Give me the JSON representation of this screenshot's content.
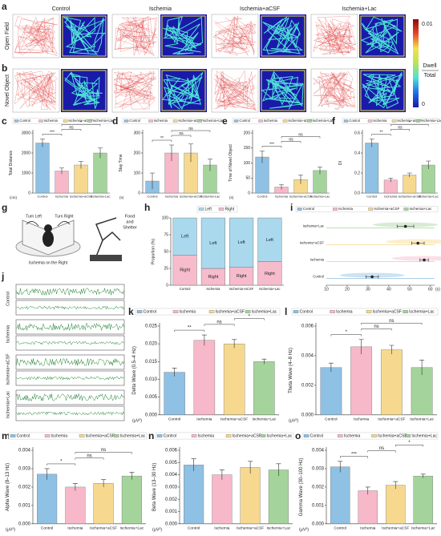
{
  "labels": [
    "a",
    "b",
    "c",
    "d",
    "e",
    "f",
    "g",
    "h",
    "i",
    "j",
    "k",
    "l",
    "m",
    "n",
    "o"
  ],
  "open_field": {
    "columns": [
      "Control",
      "Ischemia",
      "Ischemia+aCSF",
      "Ischemia+Lac"
    ],
    "rows": [
      "Open Field",
      "Novel Object"
    ],
    "colorbar": {
      "max": "0.01",
      "numerator": "Dwell",
      "denominator": "Total",
      "min": "0"
    }
  },
  "maze": {
    "turn_left": "Turn Left",
    "turn_right": "Turn Right",
    "lesion": "Ischemia on the Right",
    "food": [
      "Food",
      "and",
      "Shelter"
    ]
  },
  "eeg": {
    "rows": [
      "Control",
      "Ischemia",
      "Ischemia+aCSF",
      "Ischemia+Lac"
    ]
  },
  "chart_data": [
    {
      "type": "bar",
      "ylabel": "Total Distance",
      "unit": "(cm)",
      "categories": [
        "Control",
        "Ischemia",
        "Ischemia+aCSF",
        "Ischemia+Lac"
      ],
      "colors": [
        "#8ec1e3",
        "#f7b8c9",
        "#f6d98f",
        "#a4d49b"
      ],
      "values": [
        2500,
        1100,
        1400,
        2000
      ],
      "errors": [
        200,
        150,
        180,
        250
      ],
      "ylim": [
        0,
        3000
      ],
      "yticks": [
        0,
        1000,
        2000,
        3000
      ],
      "significance": [
        {
          "bars": [
            0,
            1
          ],
          "label": "***"
        },
        {
          "bars": [
            1,
            2
          ],
          "label": "ns"
        },
        {
          "bars": [
            1,
            3
          ],
          "label": "*"
        }
      ]
    },
    {
      "type": "bar",
      "ylabel": "Stay Time",
      "unit": "(s)",
      "categories": [
        "Control",
        "Ischemia",
        "Ischemia+aCSF",
        "Ischemia+Lac"
      ],
      "colors": [
        "#8ec1e3",
        "#f7b8c9",
        "#f6d98f",
        "#a4d49b"
      ],
      "values": [
        60,
        200,
        200,
        140
      ],
      "errors": [
        40,
        40,
        45,
        30
      ],
      "ylim": [
        0,
        300
      ],
      "yticks": [
        0,
        100,
        200,
        300
      ],
      "significance": [
        {
          "bars": [
            0,
            1
          ],
          "label": "**"
        },
        {
          "bars": [
            1,
            2
          ],
          "label": "ns"
        },
        {
          "bars": [
            1,
            3
          ],
          "label": "ns"
        }
      ]
    },
    {
      "type": "bar",
      "ylabel": "Time of Novel Object",
      "unit": "(s)",
      "categories": [
        "Control",
        "Ischemia",
        "Ischemia+aCSF",
        "Ischemia+Lac"
      ],
      "colors": [
        "#8ec1e3",
        "#f7b8c9",
        "#f6d98f",
        "#a4d49b"
      ],
      "values": [
        120,
        20,
        45,
        75
      ],
      "errors": [
        20,
        8,
        15,
        12
      ],
      "ylim": [
        0,
        200
      ],
      "yticks": [
        0,
        50,
        100,
        150,
        200
      ],
      "significance": [
        {
          "bars": [
            0,
            1
          ],
          "label": "***"
        },
        {
          "bars": [
            1,
            2
          ],
          "label": "ns"
        },
        {
          "bars": [
            1,
            3
          ],
          "label": "ns"
        }
      ]
    },
    {
      "type": "bar",
      "ylabel": "DI",
      "categories": [
        "Control",
        "Ischemia",
        "Ischemia+aCSF",
        "Ischemia+Lac"
      ],
      "colors": [
        "#8ec1e3",
        "#f7b8c9",
        "#f6d98f",
        "#a4d49b"
      ],
      "values": [
        0.5,
        0.13,
        0.18,
        0.28
      ],
      "errors": [
        0.04,
        0.02,
        0.02,
        0.04
      ],
      "ylim": [
        0,
        0.6
      ],
      "yticks": [
        {
          "value": 0,
          "label": "0.0"
        },
        0.2,
        0.4,
        0.6
      ],
      "significance": [
        {
          "bars": [
            0,
            1
          ],
          "label": "**"
        },
        {
          "bars": [
            1,
            2
          ],
          "label": "ns"
        },
        {
          "bars": [
            1,
            3
          ],
          "label": "*"
        }
      ]
    },
    {
      "type": "stacked_bar",
      "ylabel": "Proportion (%)",
      "categories": [
        "Control",
        "Ischemia",
        "Ischemia+aCSF",
        "Ischemia+Lac"
      ],
      "series": [
        {
          "name": "Right",
          "color": "#f6bccb",
          "values": [
            45,
            25,
            27,
            35
          ]
        },
        {
          "name": "Left",
          "color": "#aad9ee",
          "values": [
            55,
            75,
            73,
            65
          ]
        }
      ],
      "ylim": [
        0,
        100
      ],
      "yticks": [
        0,
        25,
        50,
        75,
        100
      ]
    },
    {
      "type": "dot",
      "xlabel": "(s)",
      "categories": [
        "Control",
        "Ischemia",
        "Ischemia+aCSF",
        "Ischemia+Lac"
      ],
      "colors": [
        "#8ec1e3",
        "#f7b8c9",
        "#f6d98f",
        "#a4d49b"
      ],
      "values": [
        32,
        57,
        54,
        48
      ],
      "errors": [
        3,
        2,
        3,
        4
      ],
      "xlim": [
        10,
        62
      ],
      "xticks": [
        10,
        20,
        30,
        40,
        50,
        60
      ]
    },
    {
      "type": "bar",
      "ylabel": "Delta Wave (0.5–4 Hz)",
      "unit": "(μV²)",
      "categories": [
        "Control",
        "Ischemia",
        "Ischemia+aCSF",
        "Ischemia+Lac"
      ],
      "colors": [
        "#8ec1e3",
        "#f7b8c9",
        "#f6d98f",
        "#a4d49b"
      ],
      "values": [
        0.012,
        0.021,
        0.02,
        0.015
      ],
      "errors": [
        0.0012,
        0.0015,
        0.0012,
        0.0007
      ],
      "ylim": [
        0,
        0.025
      ],
      "yticks": [
        {
          "value": 0,
          "label": "0.000"
        },
        {
          "value": 0.005,
          "label": "0.005"
        },
        {
          "value": 0.01,
          "label": "0.010"
        },
        {
          "value": 0.015,
          "label": "0.015"
        },
        {
          "value": 0.02,
          "label": "0.020"
        },
        {
          "value": 0.025,
          "label": "0.025"
        }
      ],
      "significance": [
        {
          "bars": [
            0,
            1
          ],
          "label": "**"
        },
        {
          "bars": [
            1,
            2
          ],
          "label": "ns"
        },
        {
          "bars": [
            2,
            3
          ],
          "label": "*"
        }
      ]
    },
    {
      "type": "bar",
      "ylabel": "Theta Wave (4–8 Hz)",
      "unit": "(μV²)",
      "categories": [
        "Control",
        "Ischemia",
        "Ischemia+aCSF",
        "Ischemia+Lac"
      ],
      "colors": [
        "#8ec1e3",
        "#f7b8c9",
        "#f6d98f",
        "#a4d49b"
      ],
      "values": [
        0.0032,
        0.0046,
        0.0044,
        0.0032
      ],
      "errors": [
        0.0003,
        0.0005,
        0.0003,
        0.0005
      ],
      "ylim": [
        0,
        0.006
      ],
      "yticks": [
        {
          "value": 0,
          "label": "0.000"
        },
        {
          "value": 0.002,
          "label": "0.002"
        },
        {
          "value": 0.004,
          "label": "0.004"
        },
        {
          "value": 0.006,
          "label": "0.006"
        }
      ],
      "significance": [
        {
          "bars": [
            0,
            1
          ],
          "label": "*"
        },
        {
          "bars": [
            1,
            2
          ],
          "label": "ns"
        },
        {
          "bars": [
            1,
            3
          ],
          "label": "ns"
        }
      ]
    },
    {
      "type": "bar",
      "ylabel": "Alpha Wave (8–13 Hz)",
      "unit": "(μV²)",
      "categories": [
        "Control",
        "Ischemia",
        "Ischemia+aCSF",
        "Ischemia+Lac"
      ],
      "colors": [
        "#8ec1e3",
        "#f7b8c9",
        "#f6d98f",
        "#a4d49b"
      ],
      "values": [
        0.0027,
        0.002,
        0.0022,
        0.0026
      ],
      "errors": [
        0.0003,
        0.0002,
        0.0002,
        0.0002
      ],
      "ylim": [
        0,
        0.004
      ],
      "yticks": [
        {
          "value": 0,
          "label": "0.000"
        },
        {
          "value": 0.001,
          "label": "0.001"
        },
        {
          "value": 0.002,
          "label": "0.002"
        },
        {
          "value": 0.003,
          "label": "0.003"
        },
        {
          "value": 0.004,
          "label": "0.004"
        }
      ],
      "significance": [
        {
          "bars": [
            0,
            1
          ],
          "label": "*"
        },
        {
          "bars": [
            1,
            2
          ],
          "label": "ns"
        },
        {
          "bars": [
            1,
            3
          ],
          "label": "ns"
        }
      ]
    },
    {
      "type": "bar",
      "ylabel": "Beta Wave (13–30 Hz)",
      "unit": "(μV²)",
      "categories": [
        "Control",
        "Ischemia",
        "Ischemia+aCSF",
        "Ischemia+Lac"
      ],
      "colors": [
        "#8ec1e3",
        "#f7b8c9",
        "#f6d98f",
        "#a4d49b"
      ],
      "values": [
        0.0048,
        0.004,
        0.0046,
        0.0044
      ],
      "errors": [
        0.0005,
        0.0004,
        0.0005,
        0.0005
      ],
      "ylim": [
        0,
        0.006
      ],
      "yticks": [
        {
          "value": 0,
          "label": "0.000"
        },
        {
          "value": 0.001,
          "label": "0.001"
        },
        {
          "value": 0.002,
          "label": "0.002"
        },
        {
          "value": 0.003,
          "label": "0.003"
        },
        {
          "value": 0.004,
          "label": "0.004"
        },
        {
          "value": 0.005,
          "label": "0.005"
        },
        {
          "value": 0.006,
          "label": "0.006"
        }
      ]
    },
    {
      "type": "bar",
      "ylabel": "Gamma Wave (30–100 Hz)",
      "unit": "(μV²)",
      "categories": [
        "Control",
        "Ischemia",
        "Ischemia+aCSF",
        "Ischemia+Lac"
      ],
      "colors": [
        "#8ec1e3",
        "#f7b8c9",
        "#f6d98f",
        "#a4d49b"
      ],
      "values": [
        0.0031,
        0.0018,
        0.0021,
        0.0026
      ],
      "errors": [
        0.0003,
        0.0002,
        0.0002,
        0.0001
      ],
      "ylim": [
        0,
        0.004
      ],
      "yticks": [
        {
          "value": 0,
          "label": "0.000"
        },
        {
          "value": 0.001,
          "label": "0.001"
        },
        {
          "value": 0.002,
          "label": "0.002"
        },
        {
          "value": 0.003,
          "label": "0.003"
        },
        {
          "value": 0.004,
          "label": "0.004"
        }
      ],
      "significance": [
        {
          "bars": [
            0,
            1
          ],
          "label": "***"
        },
        {
          "bars": [
            1,
            2
          ],
          "label": "ns"
        },
        {
          "bars": [
            2,
            3
          ],
          "label": "*"
        }
      ]
    }
  ]
}
